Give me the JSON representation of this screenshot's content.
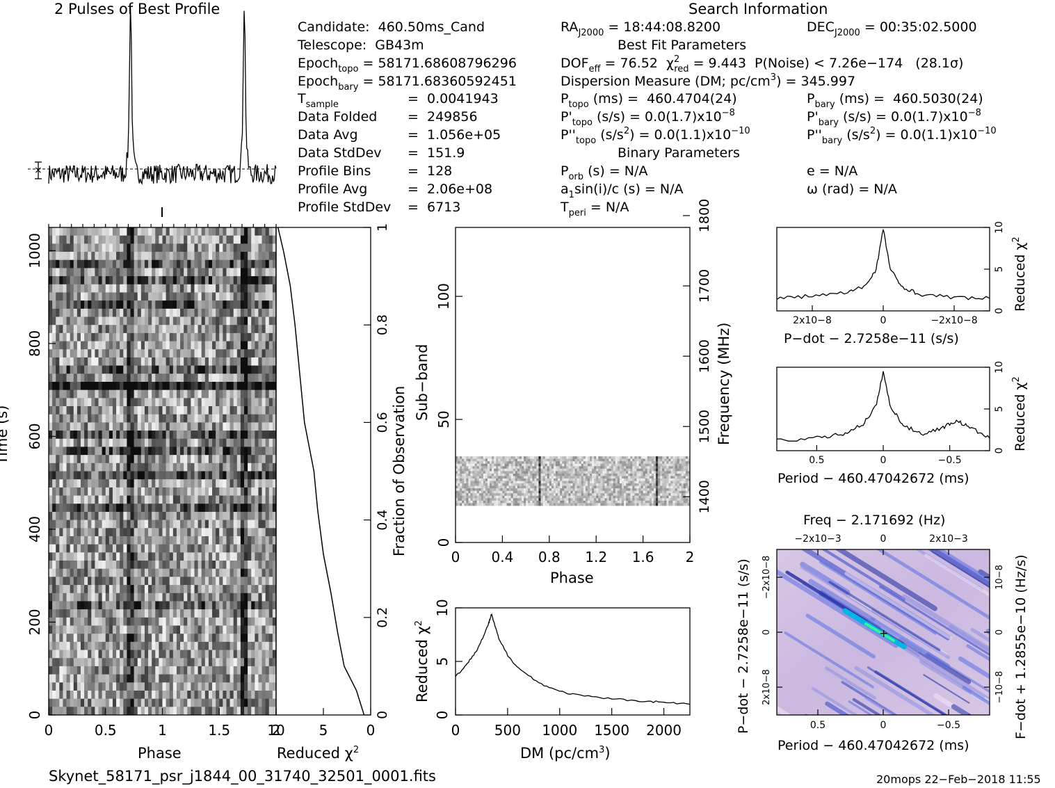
{
  "header": {
    "profile_title": "2 Pulses of Best Profile",
    "search_title": "Search Information",
    "best_fit_title": "Best Fit Parameters",
    "binary_title": "Binary Parameters"
  },
  "candidate": {
    "candidate": "Candidate:  460.50ms_Cand",
    "telescope": "Telescope:  GB43m",
    "epoch_topo_label": "Epoch",
    "epoch_topo_sub": "topo",
    "epoch_topo_val": " = 58171.68608796296",
    "epoch_bary_label": "Epoch",
    "epoch_bary_sub": "bary",
    "epoch_bary_val": " = 58171.68360592451",
    "tsample_label": "T",
    "tsample_sub": "sample",
    "tsample_val": "=  0.0041943",
    "data_folded_label": "Data Folded",
    "data_folded_val": "=  249856",
    "data_avg_label": "Data Avg",
    "data_avg_val": "=  1.056e+05",
    "data_std_label": "Data StdDev",
    "data_std_val": "=  151.9",
    "profile_bins_label": "Profile Bins",
    "profile_bins_val": "=  128",
    "profile_avg_label": "Profile Avg",
    "profile_avg_val": "=  2.06e+08",
    "profile_std_label": "Profile StdDev",
    "profile_std_val": "=  6713"
  },
  "search": {
    "ra_label": "RA",
    "ra_sub": "J2000",
    "ra_val": " = 18:44:08.8200",
    "dec_label": "DEC",
    "dec_sub": "J2000",
    "dec_val": " = 00:35:02.5000",
    "dof_a": "DOF",
    "dof_sub": "eff",
    "dof_b": " = 76.52  ",
    "chi_sym": "χ",
    "chi_sup": "2",
    "chi_sub": "red",
    "chi_val": " = 9.443  P(Noise) < 7.26e−174   (28.1σ)",
    "dm_text": "Dispersion Measure (DM; pc/cm",
    "dm_sup": "3",
    "dm_val": ") = 345.997",
    "ptopo_label": "P",
    "ptopo_sub": "topo",
    "ptopo_val": " (ms) =  460.4704(24)",
    "pbary_label": "P",
    "pbary_sub": "bary",
    "pbary_val": " (ms) =  460.5030(24)",
    "pdtopo_label": "P'",
    "pdtopo_sub": "topo",
    "pdtopo_val": " (s/s) = 0.0(1.7)x10",
    "pdtopo_exp": "−8",
    "pdbary_label": "P'",
    "pdbary_sub": "bary",
    "pdbary_val": " (s/s) = 0.0(1.7)x10",
    "pdbary_exp": "−8",
    "pddtopo_label": "P''",
    "pddtopo_sub": "topo",
    "pddtopo_val": " (s/s",
    "pddtopo_sup2": "2",
    "pddtopo_val2": ") = 0.0(1.1)x10",
    "pddtopo_exp": "−10",
    "pddbary_label": "P''",
    "pddbary_sub": "bary",
    "pddbary_val": " (s/s",
    "pddbary_sup2": "2",
    "pddbary_val2": ") = 0.0(1.1)x10",
    "pddbary_exp": "−10",
    "porb_label": "P",
    "porb_sub": "orb",
    "porb_val": " (s) = N/A",
    "e_text": "e = N/A",
    "a1_label": "a",
    "a1_sub": "1",
    "a1_val": "sin(i)/c (s) = N/A",
    "omega_text": "ω (rad) = N/A",
    "tperi_label": "T",
    "tperi_sub": "peri",
    "tperi_val": " = N/A"
  },
  "footer": {
    "filename": "Skynet_58171_psr_j1844_00_31740_32501_0001.fits",
    "stamp": "20mops 22−Feb−2018 11:55"
  },
  "axes": {
    "time_label": "Time (s)",
    "phase_label": "Phase",
    "redchi_label": "Reduced χ",
    "redchi_sup": "2",
    "fraction_label": "Fraction of Observation",
    "subband_label": "Sub−band",
    "freq_label": "Frequency (MHz)",
    "dm_label": "DM (pc/cm",
    "dm_label_sup": "3",
    "dm_label_end": ")",
    "pdot_xlabel": "P−dot − 2.7258e−11 (s/s)",
    "period_xlabel": "Period − 460.47042672 (ms)",
    "freq_toplabel": "Freq − 2.171692 (Hz)",
    "pdot_ylabel": "P−dot − 2.7258e−11 (s/s)",
    "fdot_ylabel": "F−dot + 1.2855e−10 (Hz/s)",
    "period_xlabel2": "Period − 460.47042672 (ms)"
  },
  "chart_data": [
    {
      "type": "line",
      "name": "profile",
      "title": "2 Pulses of Best Profile",
      "x": "phase 0-2 (two pulses)",
      "peaks_at_phase": [
        0.72,
        1.72
      ],
      "xlim": [
        0,
        2
      ]
    },
    {
      "type": "heatmap",
      "name": "time-phase",
      "xlabel": "Phase",
      "ylabel": "Time (s)",
      "xlim": [
        0,
        2
      ],
      "ylim": [
        0,
        1050
      ],
      "xticks": [
        "0",
        "0.5",
        "1",
        "1.5",
        "2"
      ],
      "yticks": [
        "0",
        "200",
        "400",
        "600",
        "800",
        "1000"
      ]
    },
    {
      "type": "line",
      "name": "chi-vs-fraction",
      "xlabel": "Reduced χ2",
      "ylabel": "Fraction of Observation",
      "xlim": [
        10,
        0
      ],
      "ylim": [
        0,
        1
      ],
      "xticks": [
        "10",
        "5",
        "0"
      ],
      "yticks": [
        "0",
        "0.2",
        "0.4",
        "0.6",
        "0.8",
        "1"
      ],
      "x": [
        0.7,
        1.5,
        2.8,
        3.5,
        4.2,
        5.0,
        5.6,
        6.0,
        7.0,
        7.5,
        8.0,
        8.5,
        9.2,
        9.8
      ],
      "y": [
        0.0,
        0.05,
        0.1,
        0.17,
        0.25,
        0.33,
        0.42,
        0.5,
        0.6,
        0.7,
        0.8,
        0.88,
        0.95,
        1.0
      ]
    },
    {
      "type": "heatmap",
      "name": "subband-phase",
      "xlabel": "Phase",
      "ylabel": "Sub−band",
      "y2label": "Frequency (MHz)",
      "xlim": [
        0,
        2
      ],
      "ylim": [
        0,
        128
      ],
      "xticks": [
        "0",
        "0.4",
        "0.8",
        "1.2",
        "1.6",
        "2"
      ],
      "yticks": [
        "0",
        "50",
        "100"
      ],
      "y2ticks": [
        "1400",
        "1500",
        "1600",
        "1700",
        "1800"
      ],
      "data_rows": [
        15,
        35
      ]
    },
    {
      "type": "line",
      "name": "dm-curve",
      "xlabel": "DM (pc/cm3)",
      "ylabel": "Reduced χ2",
      "xlim": [
        0,
        2250
      ],
      "ylim": [
        0,
        10
      ],
      "xticks": [
        "0",
        "500",
        "1000",
        "1500",
        "2000"
      ],
      "yticks": [
        "0",
        "5",
        "10"
      ],
      "x": [
        0,
        100,
        200,
        280,
        320,
        345,
        370,
        420,
        500,
        600,
        800,
        1000,
        1200,
        1500,
        1800,
        2000,
        2250
      ],
      "y": [
        3.6,
        4.6,
        6.0,
        7.6,
        8.6,
        9.4,
        8.6,
        7.0,
        5.6,
        4.4,
        3.0,
        2.2,
        1.8,
        1.5,
        1.3,
        1.2,
        1.0
      ]
    },
    {
      "type": "line",
      "name": "pdot-curve",
      "xlabel": "P−dot − 2.7258e−11 (s/s)",
      "ylabel": "Reduced χ2",
      "xlim": [
        3e-08,
        -3e-08
      ],
      "ylim": [
        0,
        10
      ],
      "xticks": [
        "2x10−8",
        "0",
        "−2x10−8"
      ],
      "yticks": [
        "0",
        "5",
        "10"
      ],
      "x": [
        3e-08,
        2e-08,
        1e-08,
        5e-09,
        2e-09,
        0,
        -2e-09,
        -5e-09,
        -1e-08,
        -2e-08,
        -3e-08
      ],
      "y": [
        1.5,
        1.8,
        2.2,
        3.0,
        5.0,
        9.8,
        5.0,
        3.0,
        2.0,
        1.6,
        1.5
      ]
    },
    {
      "type": "line",
      "name": "period-curve",
      "xlabel": "Period − 460.47042672 (ms)",
      "ylabel": "Reduced χ2",
      "xlim": [
        0.8,
        -0.8
      ],
      "ylim": [
        0,
        10
      ],
      "xticks": [
        "0.5",
        "0",
        "−0.5"
      ],
      "yticks": [
        "0",
        "5",
        "10"
      ],
      "x": [
        0.8,
        0.5,
        0.3,
        0.15,
        0.05,
        0,
        -0.05,
        -0.15,
        -0.3,
        -0.45,
        -0.55,
        -0.65,
        -0.8
      ],
      "y": [
        1.2,
        1.5,
        2.0,
        3.2,
        5.5,
        9.5,
        5.5,
        3.0,
        2.0,
        2.8,
        3.6,
        2.8,
        1.5
      ]
    },
    {
      "type": "heatmap",
      "name": "period-pdot-plane",
      "xlabel": "Period − 460.47042672 (ms)",
      "ylabel": "P−dot − 2.7258e−11 (s/s)",
      "x2label": "Freq − 2.171692 (Hz)",
      "y2label": "F−dot + 1.2855e−10 (Hz/s)",
      "xticks": [
        "0.5",
        "0",
        "−0.5"
      ],
      "x2ticks": [
        "−2x10−3",
        "0",
        "2x10−3"
      ],
      "yticks": [
        "−2x10−8",
        "0",
        "2x10−8"
      ],
      "y2ticks": [
        "10−8",
        "0",
        "−10−8"
      ]
    }
  ]
}
